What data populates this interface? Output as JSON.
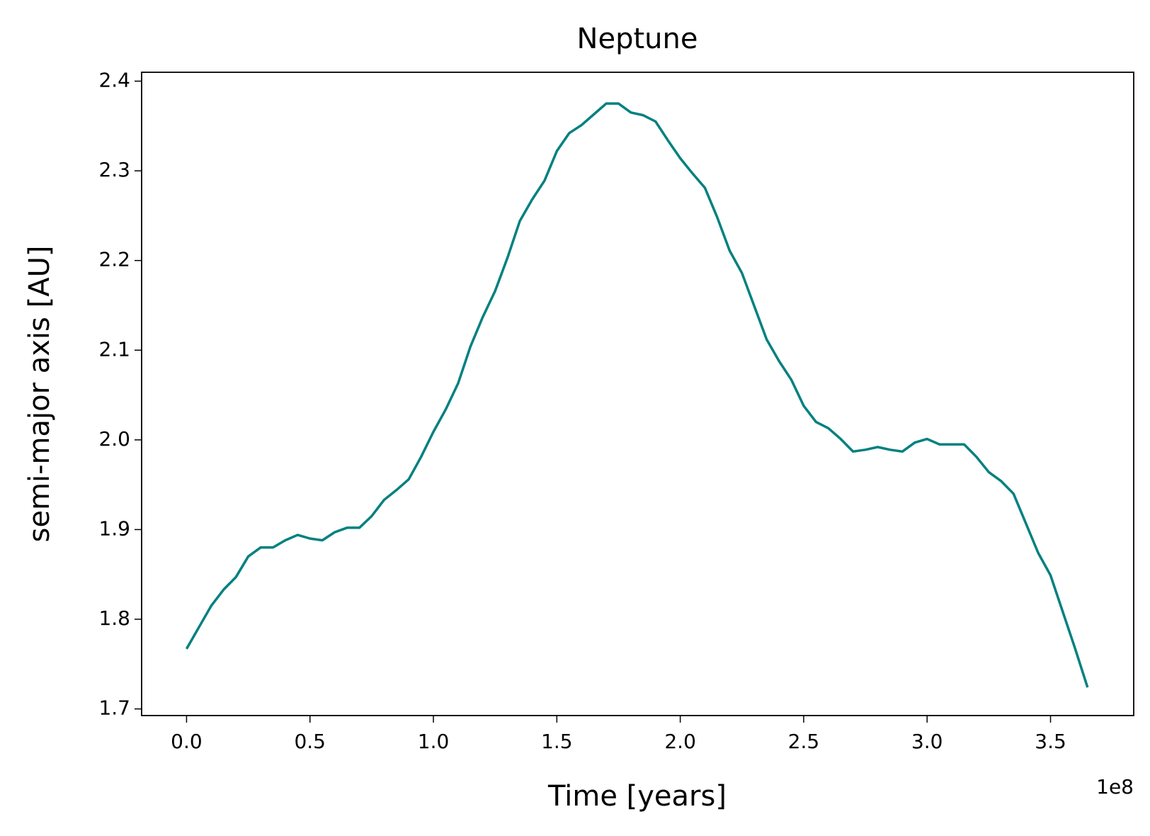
{
  "chart_data": {
    "type": "line",
    "title": "Neptune",
    "x_label": "Time [years]",
    "y_label": "semi-major axis [AU]",
    "x_offset_label": "1e8",
    "x": [
      0,
      5000000,
      10000000,
      15000000,
      20000000,
      25000000,
      30000000,
      35000000,
      40000000,
      45000000,
      50000000,
      55000000,
      60000000,
      65000000,
      70000000,
      75000000,
      80000000,
      85000000,
      90000000,
      95000000,
      100000000,
      105000000,
      110000000,
      115000000,
      120000000,
      125000000,
      130000000,
      135000000,
      140000000,
      145000000,
      150000000,
      155000000,
      160000000,
      165000000,
      170000000,
      175000000,
      180000000,
      185000000,
      190000000,
      195000000,
      200000000,
      205000000,
      210000000,
      215000000,
      220000000,
      225000000,
      230000000,
      235000000,
      240000000,
      245000000,
      250000000,
      255000000,
      260000000,
      265000000,
      270000000,
      275000000,
      280000000,
      285000000,
      290000000,
      295000000,
      300000000,
      305000000,
      310000000,
      315000000,
      320000000,
      325000000,
      330000000,
      335000000,
      340000000,
      345000000,
      350000000,
      355000000,
      360000000,
      365000000
    ],
    "series": [
      {
        "name": "Neptune",
        "color": "#008080",
        "values": [
          1.767,
          1.791,
          1.815,
          1.833,
          1.847,
          1.87,
          1.88,
          1.88,
          1.888,
          1.894,
          1.89,
          1.888,
          1.897,
          1.902,
          1.902,
          1.915,
          1.933,
          1.944,
          1.956,
          1.981,
          2.009,
          2.034,
          2.063,
          2.104,
          2.137,
          2.166,
          2.203,
          2.244,
          2.268,
          2.289,
          2.322,
          2.342,
          2.351,
          2.363,
          2.375,
          2.375,
          2.365,
          2.362,
          2.355,
          2.334,
          2.314,
          2.297,
          2.281,
          2.248,
          2.211,
          2.186,
          2.149,
          2.112,
          2.088,
          2.067,
          2.038,
          2.02,
          2.013,
          2.001,
          1.987,
          1.989,
          1.992,
          1.989,
          1.987,
          1.997,
          2.001,
          1.995,
          1.995,
          1.995,
          1.981,
          1.964,
          1.954,
          1.94,
          1.907,
          1.874,
          1.849,
          1.808,
          1.767,
          1.724
        ]
      }
    ],
    "xlim": [
      -18200000,
      383700000
    ],
    "xticks": [
      {
        "value": 0,
        "label": "0.0"
      },
      {
        "value": 50000000,
        "label": "0.5"
      },
      {
        "value": 100000000,
        "label": "1.0"
      },
      {
        "value": 150000000,
        "label": "1.5"
      },
      {
        "value": 200000000,
        "label": "2.0"
      },
      {
        "value": 250000000,
        "label": "2.5"
      },
      {
        "value": 300000000,
        "label": "3.0"
      },
      {
        "value": 350000000,
        "label": "3.5"
      }
    ],
    "ylim": [
      1.6926,
      2.4099
    ],
    "yticks": [
      1.7,
      1.8,
      1.9,
      {
        "value": 2,
        "label": "2.0"
      },
      2.1,
      2.2,
      2.3,
      2.4
    ],
    "grid": false
  }
}
